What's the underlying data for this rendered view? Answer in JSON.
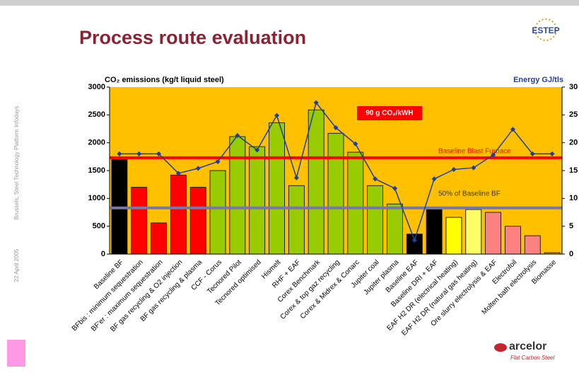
{
  "header": {
    "title": "Process route evaluation",
    "side_text": "Brussels, Steel Technology Platform Infodays",
    "date": "22 April 2005",
    "logo_top": "ESTEP",
    "logo_bottom": "arcelor",
    "logo_bottom_sub": "Flat Carbon Steel"
  },
  "chart_data": {
    "type": "bar",
    "categories": [
      "Baseline BF",
      "BFbis : minimum sequestration",
      "BF'er : maximum sequestration",
      "BF gas recycling & O2 injection",
      "BF gas recycling & plasma",
      "CCF - Corus",
      "Tecnored Pilot",
      "Tecnored optimised",
      "Hismelt",
      "RHF + EAF",
      "Corex Benchmark",
      "Corex & top gaz recycling",
      "Corex & Midrex & Conarc",
      "Jupiter coal",
      "Jupiter plasma",
      "Baseline EAF",
      "Baseline DRI + EAF",
      "EAF H2 DR (electrical heating)",
      "EAF H2 DR (natural gas heating)",
      "Ore slurry electrolysis & EAF",
      "Electrofoil",
      "Molten bath electrolysis",
      "Biomasse"
    ],
    "series": [
      {
        "name": "CO₂ emissions (kg/t liquid steel)",
        "type": "bar",
        "values": [
          1700,
          1200,
          560,
          1420,
          1200,
          1500,
          2110,
          1930,
          2360,
          1230,
          2590,
          2170,
          1830,
          1230,
          900,
          360,
          800,
          660,
          800,
          750,
          500,
          330,
          25
        ],
        "colors": [
          "#000000",
          "#ff0000",
          "#ff0000",
          "#ff0000",
          "#ff0000",
          "#99cc00",
          "#99cc00",
          "#99cc00",
          "#99cc00",
          "#99cc00",
          "#99cc00",
          "#99cc00",
          "#99cc00",
          "#99cc00",
          "#99cc00",
          "#000000",
          "#000000",
          "#ffff00",
          "#ffff66",
          "#ff8080",
          "#ff8080",
          "#ff8080",
          "#ff9900"
        ]
      },
      {
        "name": "Energy GJ/tls",
        "type": "line",
        "axis": "y2",
        "color": "#1f3f9f",
        "values": [
          18,
          18,
          18,
          14.5,
          15.4,
          16.6,
          21.3,
          18.7,
          24.9,
          13.7,
          27.2,
          22.7,
          19.8,
          13.5,
          11.8,
          2.5,
          13.5,
          15.2,
          15.5,
          17.8,
          22.4,
          18,
          18
        ]
      }
    ],
    "ylim": [
      0,
      3000
    ],
    "yticks": [
      0,
      500,
      1000,
      1500,
      2000,
      2500,
      3000
    ],
    "y2lim": [
      0,
      30
    ],
    "y2ticks": [
      0,
      5,
      10,
      15,
      20,
      25,
      30
    ],
    "plot_background": "#ffc000",
    "reference_lines": [
      {
        "label": "Baseline Blast Furnace",
        "value": 1730,
        "color": "#ff0000"
      },
      {
        "label": "50% of Baseline BF",
        "value": 830,
        "color": "#7878a8"
      }
    ],
    "annotation": "90 g CO₂/kWH"
  }
}
